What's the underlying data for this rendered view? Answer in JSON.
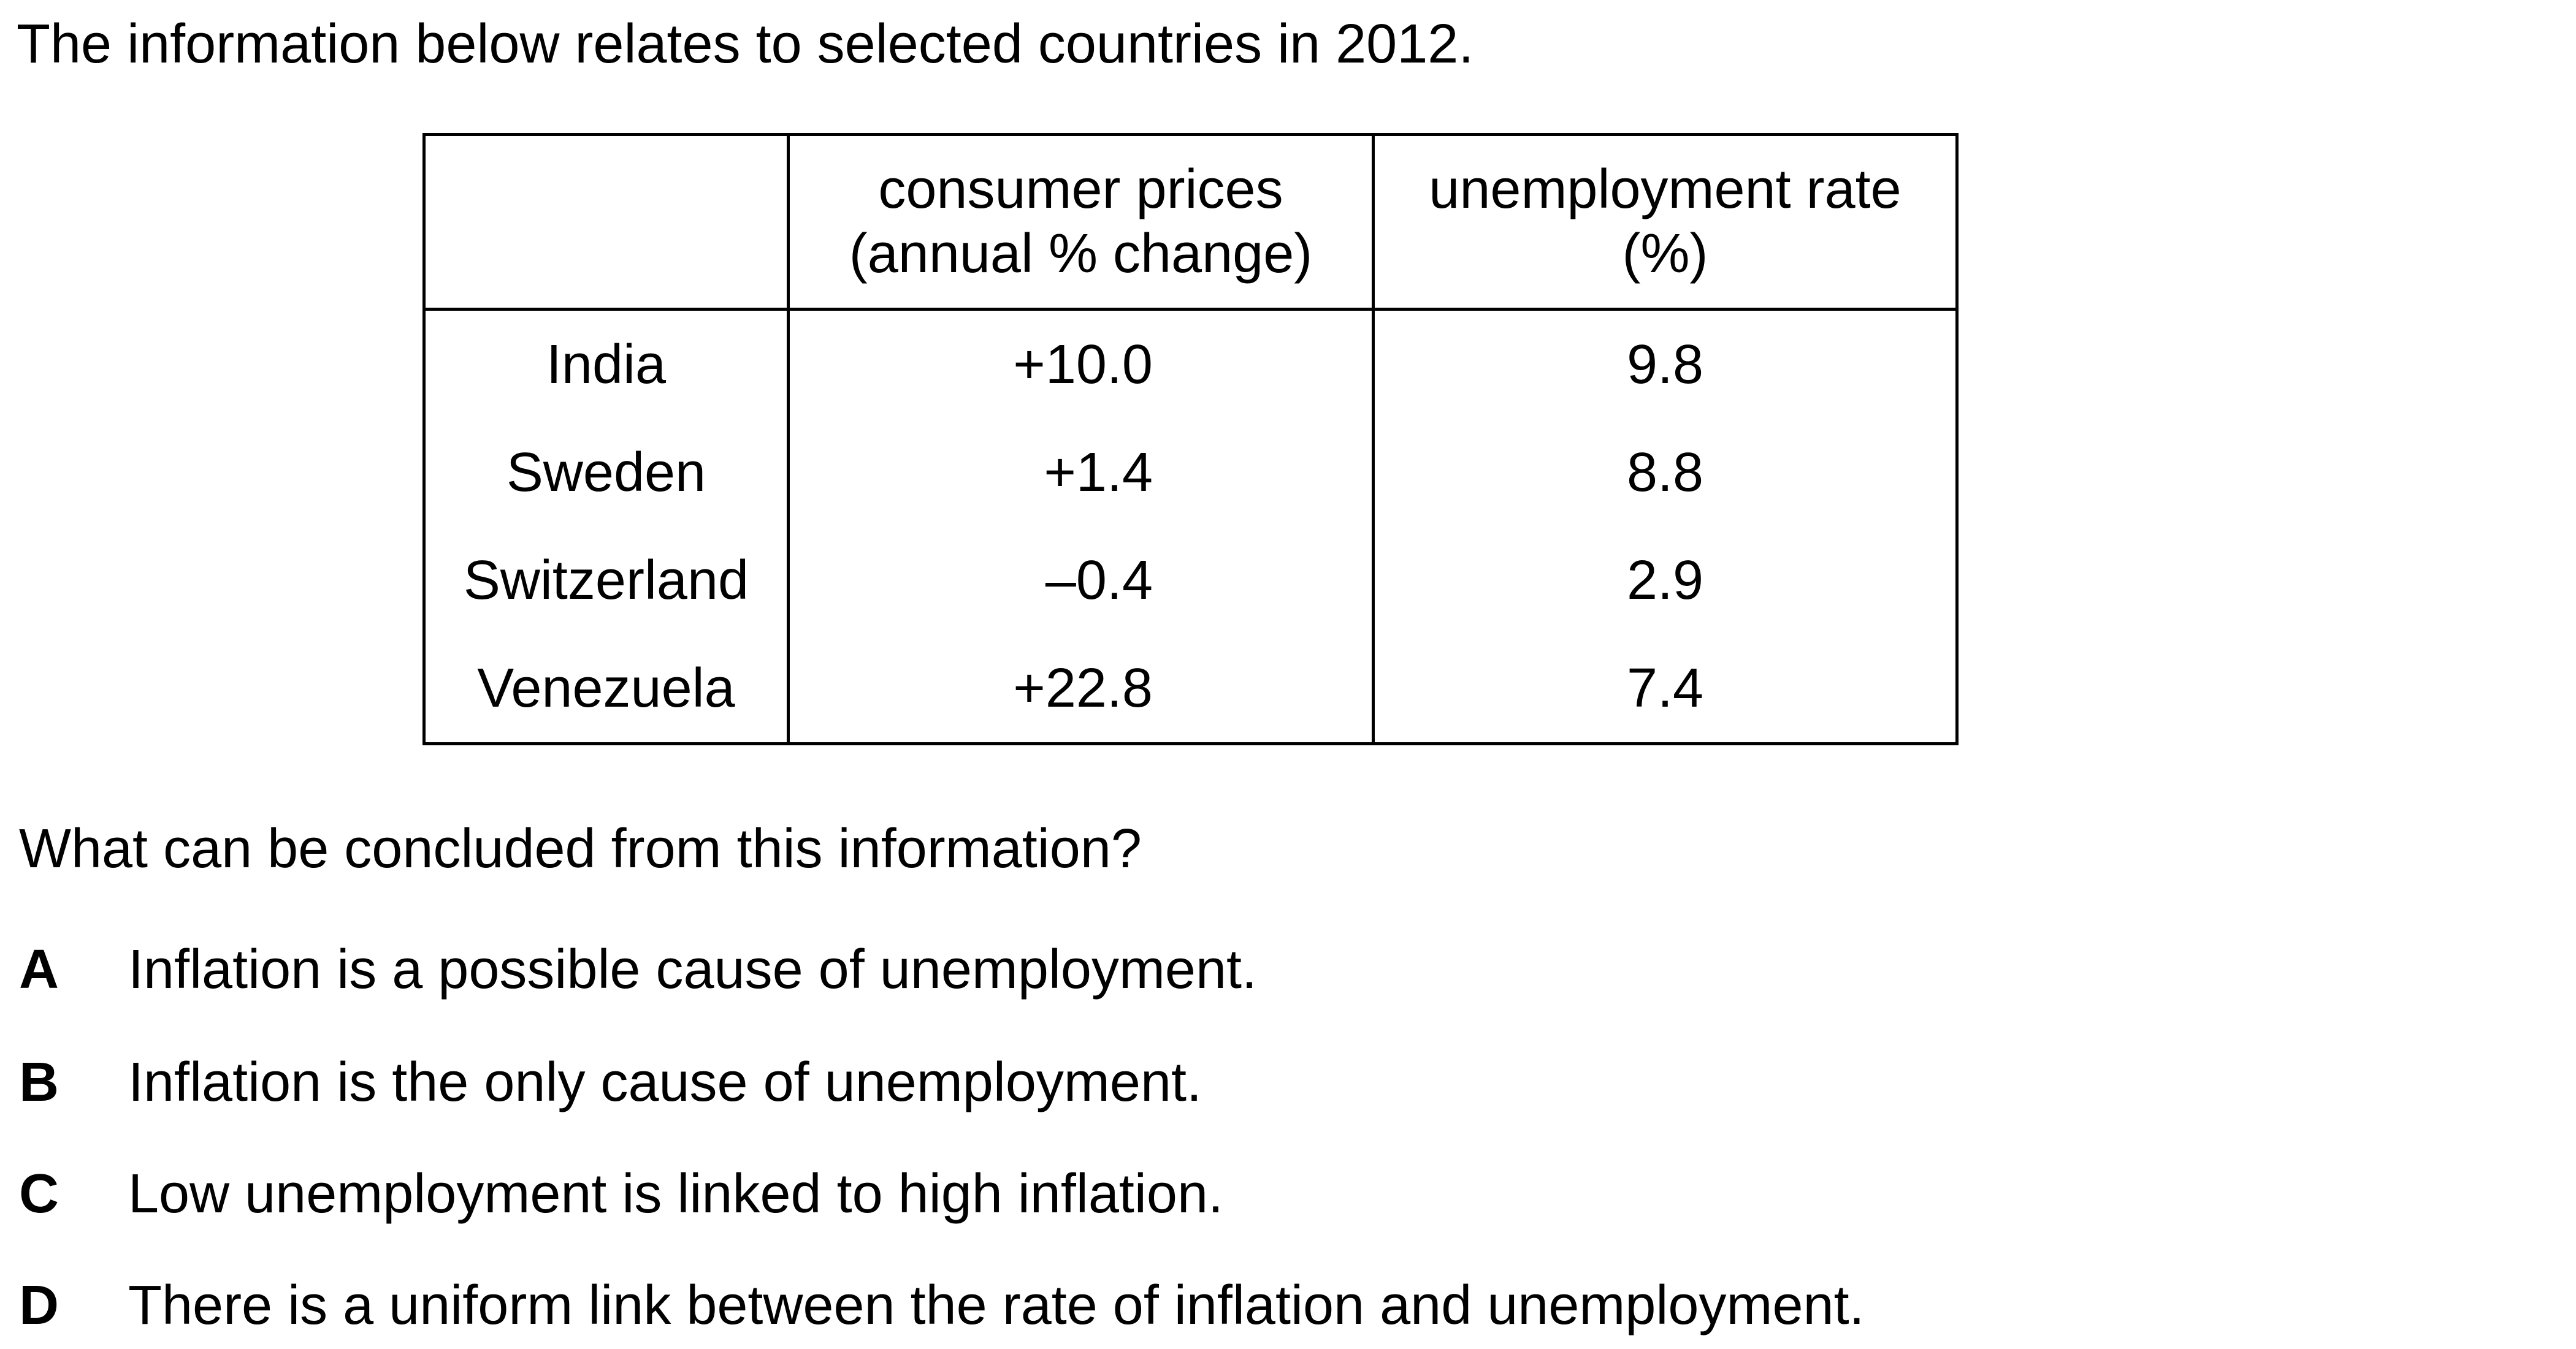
{
  "intro": "The information below relates to selected countries in 2012.",
  "table": {
    "headers": [
      {
        "lines": [
          "",
          ""
        ]
      },
      {
        "lines": [
          "consumer prices",
          "(annual % change)"
        ]
      },
      {
        "lines": [
          "unemployment rate",
          "(%)"
        ]
      }
    ],
    "rows": [
      {
        "country": "India",
        "consumer_prices": "+10.0",
        "unemployment_rate": "9.8"
      },
      {
        "country": "Sweden",
        "consumer_prices": "+1.4",
        "unemployment_rate": "8.8"
      },
      {
        "country": "Switzerland",
        "consumer_prices": "–0.4",
        "unemployment_rate": "2.9"
      },
      {
        "country": "Venezuela",
        "consumer_prices": "+22.8",
        "unemployment_rate": "7.4"
      }
    ]
  },
  "question": "What can be concluded from this information?",
  "options": [
    {
      "letter": "A",
      "text": "Inflation is a possible cause of unemployment."
    },
    {
      "letter": "B",
      "text": "Inflation is the only cause of unemployment."
    },
    {
      "letter": "C",
      "text": "Low unemployment is linked to high inflation."
    },
    {
      "letter": "D",
      "text": "There is a uniform link between the rate of inflation and unemployment."
    }
  ]
}
